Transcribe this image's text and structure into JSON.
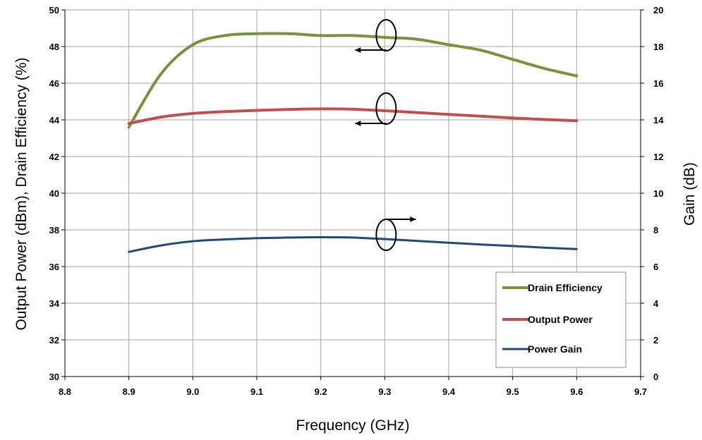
{
  "chart_data": {
    "type": "line",
    "xlabel": "Frequency (GHz)",
    "ylabel_left": "Output Power (dBm), Drain Efficiency (%)",
    "ylabel_right": "Gain (dB)",
    "xlim": [
      8.8,
      9.7
    ],
    "ylim_left": [
      30,
      50
    ],
    "ylim_right": [
      0,
      20
    ],
    "x_ticks": [
      "8.8",
      "8.9",
      "9.0",
      "9.1",
      "9.2",
      "9.3",
      "9.4",
      "9.5",
      "9.6",
      "9.7"
    ],
    "y_left_ticks": [
      "30",
      "32",
      "34",
      "36",
      "38",
      "40",
      "42",
      "44",
      "46",
      "48",
      "50"
    ],
    "y_right_ticks": [
      "0",
      "2",
      "4",
      "6",
      "8",
      "10",
      "12",
      "14",
      "16",
      "18",
      "20"
    ],
    "grid": true,
    "legend_position": "bottom-right",
    "series": [
      {
        "name": "Drain Efficiency",
        "axis": "left",
        "color": "#77933C",
        "x": [
          8.9,
          8.95,
          9.0,
          9.05,
          9.1,
          9.15,
          9.2,
          9.25,
          9.3,
          9.35,
          9.4,
          9.45,
          9.5,
          9.55,
          9.6
        ],
        "y": [
          43.6,
          46.5,
          48.1,
          48.6,
          48.7,
          48.7,
          48.6,
          48.6,
          48.5,
          48.4,
          48.1,
          47.8,
          47.3,
          46.8,
          46.4
        ]
      },
      {
        "name": "Output Power",
        "axis": "left",
        "color": "#C0504D",
        "x": [
          8.9,
          8.95,
          9.0,
          9.05,
          9.1,
          9.15,
          9.2,
          9.25,
          9.3,
          9.35,
          9.4,
          9.45,
          9.5,
          9.55,
          9.6
        ],
        "y": [
          43.8,
          44.15,
          44.35,
          44.45,
          44.52,
          44.57,
          44.6,
          44.58,
          44.5,
          44.4,
          44.3,
          44.2,
          44.1,
          44.02,
          43.95
        ]
      },
      {
        "name": "Power Gain",
        "axis": "right",
        "color": "#1F497D",
        "x": [
          8.9,
          8.95,
          9.0,
          9.05,
          9.1,
          9.15,
          9.2,
          9.25,
          9.3,
          9.35,
          9.4,
          9.45,
          9.5,
          9.55,
          9.6
        ],
        "y": [
          6.8,
          7.15,
          7.38,
          7.48,
          7.55,
          7.58,
          7.6,
          7.58,
          7.5,
          7.4,
          7.3,
          7.2,
          7.12,
          7.03,
          6.95
        ]
      }
    ],
    "annotations": [
      {
        "type": "axis-indicator",
        "series": "Drain Efficiency",
        "direction": "left",
        "x": 9.3,
        "y": 48.5
      },
      {
        "type": "axis-indicator",
        "series": "Output Power",
        "direction": "left",
        "x": 9.3,
        "y": 44.5
      },
      {
        "type": "axis-indicator",
        "series": "Power Gain",
        "direction": "right",
        "x": 9.3,
        "y": 7.5
      }
    ]
  }
}
